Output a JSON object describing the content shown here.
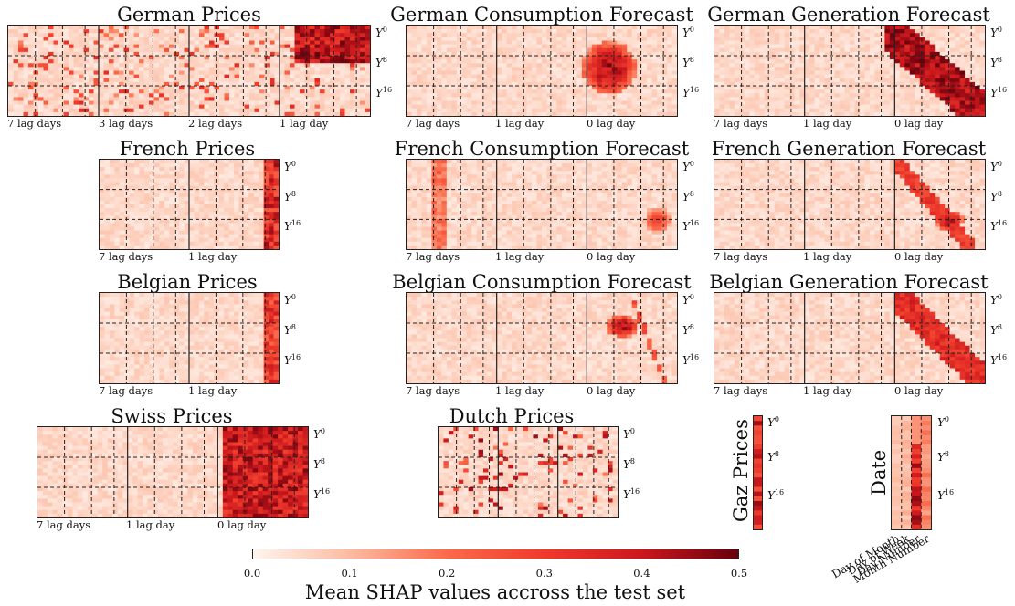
{
  "figure": {
    "panels": [
      {
        "id": "german-prices",
        "title": "German Prices",
        "xticks": [
          "7 lag days",
          "3 lag days",
          "2 lag days",
          "1 lag day"
        ],
        "blocks": 4,
        "hot": [
          {
            "type": "band",
            "cols": [
              0.78,
              1.0
            ],
            "rows": [
              0,
              0.4
            ],
            "v": 0.5
          },
          {
            "type": "stripes",
            "v": 0.35
          }
        ]
      },
      {
        "id": "german-consumption-forecast",
        "title": "German Consumption Forecast",
        "xticks": [
          "7 lag days",
          "1 lag day",
          "0 lag day"
        ],
        "blocks": 3,
        "hot": [
          {
            "type": "blob",
            "cx": 0.74,
            "cy": 0.45,
            "rx": 0.1,
            "ry": 0.3,
            "v": 0.5
          }
        ]
      },
      {
        "id": "german-generation-forecast",
        "title": "German Generation Forecast",
        "xticks": [
          "7 lag days",
          "1 lag day",
          "0 lag day"
        ],
        "blocks": 3,
        "hot": [
          {
            "type": "diag",
            "x0": 0.62,
            "x1": 1.0,
            "w": 0.13,
            "v": 0.5
          }
        ]
      },
      {
        "id": "french-prices",
        "title": "French Prices",
        "xticks": [
          "7 lag days",
          "1 lag day"
        ],
        "blocks": 2,
        "hot": [
          {
            "type": "col",
            "cx": 0.95,
            "w": 0.06,
            "v": 0.45
          }
        ]
      },
      {
        "id": "french-consumption-forecast",
        "title": "French Consumption Forecast",
        "xticks": [
          "7 lag days",
          "1 lag day",
          "0 lag day"
        ],
        "blocks": 3,
        "hot": [
          {
            "type": "col",
            "cx": 0.11,
            "w": 0.02,
            "v": 0.25
          },
          {
            "type": "blob",
            "cx": 0.92,
            "cy": 0.65,
            "rx": 0.05,
            "ry": 0.15,
            "v": 0.3
          }
        ]
      },
      {
        "id": "french-generation-forecast",
        "title": "French Generation Forecast",
        "xticks": [
          "7 lag days",
          "1 lag day",
          "0 lag day"
        ],
        "blocks": 3,
        "hot": [
          {
            "type": "diag",
            "x0": 0.66,
            "x1": 0.95,
            "w": 0.06,
            "v": 0.35
          },
          {
            "type": "blob",
            "cx": 0.86,
            "cy": 0.66,
            "rx": 0.05,
            "ry": 0.12,
            "v": 0.5
          }
        ]
      },
      {
        "id": "belgian-prices",
        "title": "Belgian Prices",
        "xticks": [
          "7 lag days",
          "1 lag day"
        ],
        "blocks": 2,
        "hot": [
          {
            "type": "col",
            "cx": 0.94,
            "w": 0.05,
            "v": 0.4
          }
        ]
      },
      {
        "id": "belgian-consumption-forecast",
        "title": "Belgian Consumption Forecast",
        "xticks": [
          "7 lag days",
          "1 lag day",
          "0 lag day"
        ],
        "blocks": 3,
        "hot": [
          {
            "type": "blob",
            "cx": 0.79,
            "cy": 0.35,
            "rx": 0.06,
            "ry": 0.12,
            "v": 0.5
          },
          {
            "type": "diag",
            "x0": 0.82,
            "x1": 0.95,
            "w": 0.03,
            "v": 0.3
          }
        ]
      },
      {
        "id": "belgian-generation-forecast",
        "title": "Belgian Generation Forecast",
        "xticks": [
          "7 lag days",
          "1 lag day",
          "0 lag day"
        ],
        "blocks": 3,
        "hot": [
          {
            "type": "diag",
            "x0": 0.66,
            "x1": 1.0,
            "w": 0.1,
            "v": 0.4
          }
        ]
      },
      {
        "id": "swiss-prices",
        "title": "Swiss Prices",
        "xticks": [
          "7 lag days",
          "1 lag day",
          "0 lag day"
        ],
        "blocks": 3,
        "hot": [
          {
            "type": "band",
            "cols": [
              0.67,
              1.0
            ],
            "rows": [
              0,
              1.0
            ],
            "v": 0.48
          }
        ]
      },
      {
        "id": "dutch-prices",
        "title": "Dutch Prices",
        "xticks": [],
        "blocks": 3,
        "hot": [
          {
            "type": "stripes",
            "v": 0.45
          }
        ]
      }
    ],
    "gaz_title": "Gaz Prices",
    "date_title": "Date",
    "date_xticks": [
      "Day of Month",
      "Day of Week",
      "Day Number",
      "Month Number"
    ],
    "ylabels": [
      "0",
      "8",
      "16"
    ],
    "colorbar": {
      "label": "Mean SHAP values accross the test set",
      "ticks": [
        "0.0",
        "0.1",
        "0.2",
        "0.3",
        "0.4",
        "0.5"
      ],
      "min": 0,
      "max": 0.5,
      "colormap": [
        "#fff5f0",
        "#fcbba1",
        "#fb6a4a",
        "#ef3b2c",
        "#cb181d",
        "#67000d"
      ]
    }
  }
}
